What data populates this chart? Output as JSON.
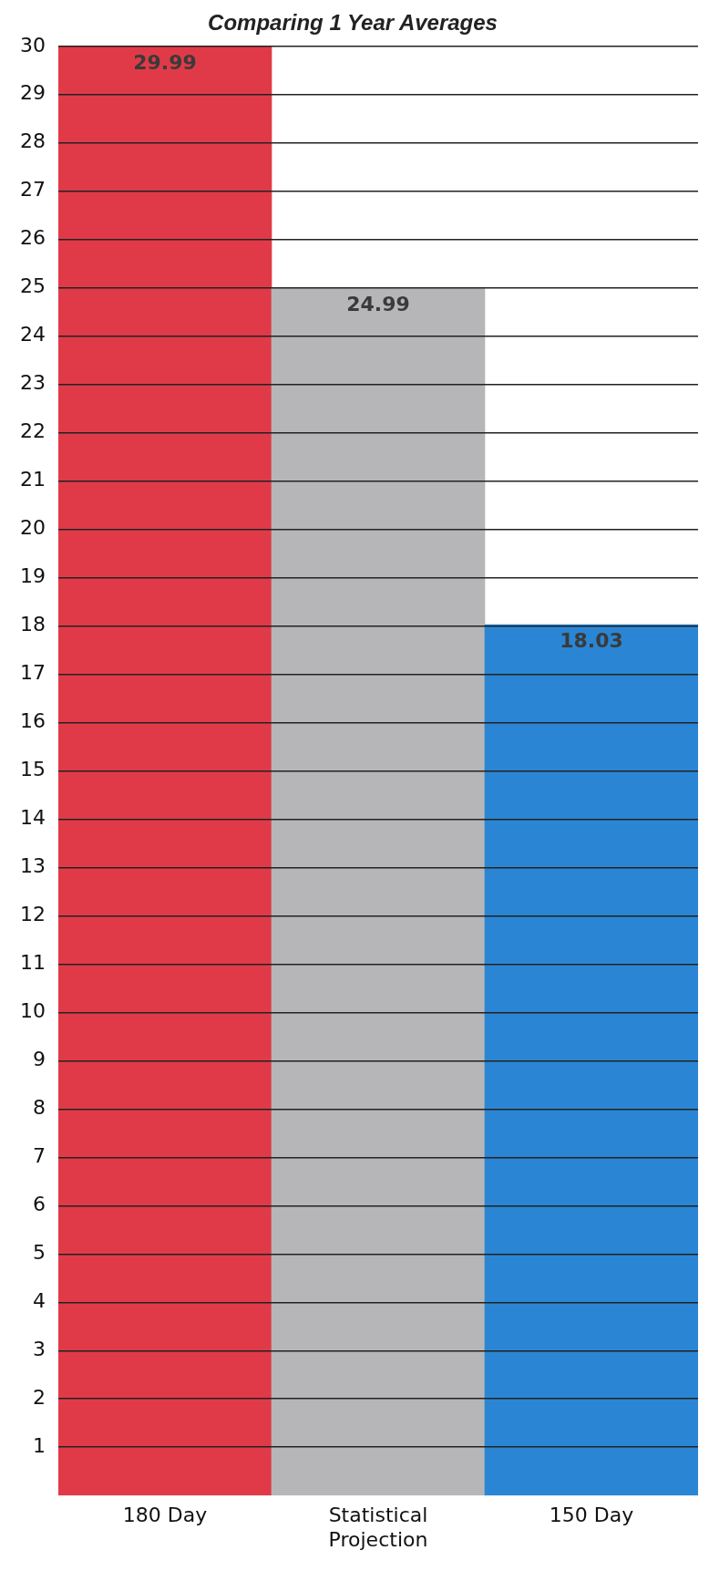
{
  "chart_data": {
    "type": "bar",
    "title": "Comparing 1 Year Averages",
    "categories": [
      "180 Day",
      "Statistical Projection",
      "150 Day"
    ],
    "values": [
      29.99,
      24.99,
      18.03
    ],
    "colors": [
      "#e03a48",
      "#b6b6b8",
      "#2a86d4"
    ],
    "ylim": [
      0,
      30
    ],
    "yticks": [
      1,
      2,
      3,
      4,
      5,
      6,
      7,
      8,
      9,
      10,
      11,
      12,
      13,
      14,
      15,
      16,
      17,
      18,
      19,
      20,
      21,
      22,
      23,
      24,
      25,
      26,
      27,
      28,
      29,
      30
    ],
    "grid": "y",
    "data_labels": true,
    "legend": false
  }
}
